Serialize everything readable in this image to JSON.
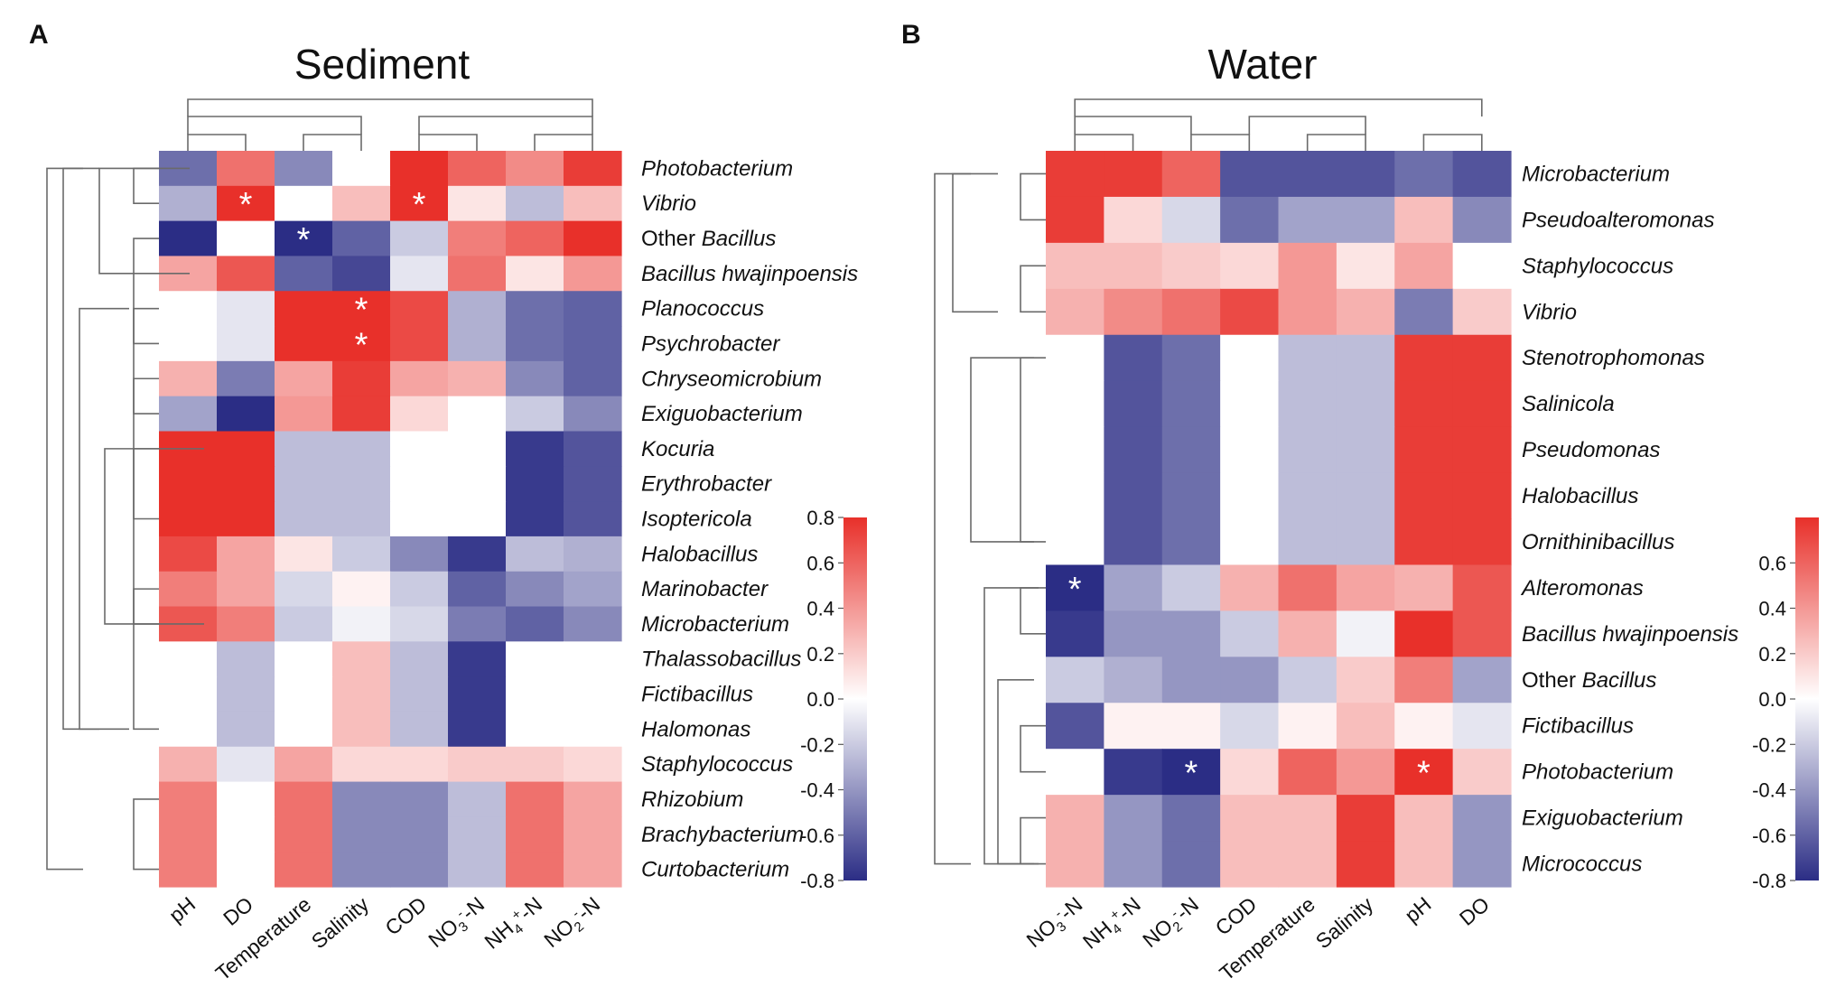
{
  "panels": [
    {
      "letter": "A",
      "title": "Sediment",
      "chart_data": {
        "type": "heatmap",
        "title": "Sediment",
        "columns": [
          "pH",
          "DO",
          "Temperature",
          "Salinity",
          "COD",
          "NO3--N",
          "NH4+-N",
          "NO2--N"
        ],
        "column_labels_rich": [
          [
            {
              "t": "pH"
            }
          ],
          [
            {
              "t": "DO"
            }
          ],
          [
            {
              "t": "Temperature"
            }
          ],
          [
            {
              "t": "Salinity"
            }
          ],
          [
            {
              "t": "COD"
            }
          ],
          [
            {
              "t": "NO"
            },
            {
              "t": "3",
              "s": "sub"
            },
            {
              "t": "-",
              "s": "sup"
            },
            {
              "t": "-N"
            }
          ],
          [
            {
              "t": "NH"
            },
            {
              "t": "4",
              "s": "sub"
            },
            {
              "t": "+",
              "s": "sup"
            },
            {
              "t": "-N"
            }
          ],
          [
            {
              "t": "NO"
            },
            {
              "t": "2",
              "s": "sub"
            },
            {
              "t": "-",
              "s": "sup"
            },
            {
              "t": "-N"
            }
          ]
        ],
        "rows": [
          [
            {
              "t": "Photobacterium",
              "i": true
            }
          ],
          [
            {
              "t": "Vibrio",
              "i": true
            }
          ],
          [
            {
              "t": "Other ",
              "i": false
            },
            {
              "t": "Bacillus",
              "i": true
            }
          ],
          [
            {
              "t": "Bacillus hwajinpoensis",
              "i": true
            }
          ],
          [
            {
              "t": "Planococcus",
              "i": true
            }
          ],
          [
            {
              "t": "Psychrobacter",
              "i": true
            }
          ],
          [
            {
              "t": "Chryseomicrobium",
              "i": true
            }
          ],
          [
            {
              "t": "Exiguobacterium",
              "i": true
            }
          ],
          [
            {
              "t": "Kocuria",
              "i": true
            }
          ],
          [
            {
              "t": "Erythrobacter",
              "i": true
            }
          ],
          [
            {
              "t": "Isoptericola",
              "i": true
            }
          ],
          [
            {
              "t": "Halobacillus",
              "i": true
            }
          ],
          [
            {
              "t": "Marinobacter",
              "i": true
            }
          ],
          [
            {
              "t": "Microbacterium",
              "i": true
            }
          ],
          [
            {
              "t": "Thalassobacillus",
              "i": true
            }
          ],
          [
            {
              "t": "Fictibacillus",
              "i": true
            }
          ],
          [
            {
              "t": "Halomonas",
              "i": true
            }
          ],
          [
            {
              "t": "Staphylococcus",
              "i": true
            }
          ],
          [
            {
              "t": "Rhizobium",
              "i": true
            }
          ],
          [
            {
              "t": "Brachybacterium",
              "i": true
            }
          ],
          [
            {
              "t": "Curtobacterium",
              "i": true
            }
          ]
        ],
        "values": [
          [
            -0.55,
            0.55,
            -0.45,
            0.0,
            0.8,
            0.6,
            0.45,
            0.75
          ],
          [
            -0.3,
            0.85,
            0.0,
            0.25,
            0.85,
            0.1,
            -0.25,
            0.25
          ],
          [
            -0.85,
            0.0,
            -0.85,
            -0.6,
            -0.2,
            0.5,
            0.6,
            0.8
          ],
          [
            0.35,
            0.65,
            -0.6,
            -0.7,
            -0.1,
            0.55,
            0.1,
            0.4
          ],
          [
            0.0,
            -0.1,
            0.8,
            0.8,
            0.7,
            -0.3,
            -0.55,
            -0.6
          ],
          [
            0.0,
            -0.1,
            0.8,
            0.8,
            0.7,
            -0.3,
            -0.55,
            -0.6
          ],
          [
            0.3,
            -0.5,
            0.35,
            0.75,
            0.35,
            0.3,
            -0.45,
            -0.6
          ],
          [
            -0.35,
            -0.85,
            0.4,
            0.75,
            0.15,
            0.0,
            -0.2,
            -0.45
          ],
          [
            0.8,
            0.8,
            -0.25,
            -0.25,
            0.0,
            0.0,
            -0.75,
            -0.65
          ],
          [
            0.8,
            0.8,
            -0.25,
            -0.25,
            0.0,
            0.0,
            -0.75,
            -0.65
          ],
          [
            0.8,
            0.8,
            -0.25,
            -0.25,
            0.0,
            0.0,
            -0.75,
            -0.65
          ],
          [
            0.7,
            0.35,
            0.1,
            -0.2,
            -0.45,
            -0.75,
            -0.25,
            -0.3
          ],
          [
            0.5,
            0.35,
            -0.15,
            0.05,
            -0.2,
            -0.6,
            -0.45,
            -0.35
          ],
          [
            0.65,
            0.5,
            -0.2,
            -0.05,
            -0.15,
            -0.5,
            -0.6,
            -0.45
          ],
          [
            0.0,
            -0.25,
            0.0,
            0.25,
            -0.25,
            -0.75,
            0.0,
            0.0
          ],
          [
            0.0,
            -0.25,
            0.0,
            0.25,
            -0.25,
            -0.75,
            0.0,
            0.0
          ],
          [
            0.0,
            -0.25,
            0.0,
            0.25,
            -0.25,
            -0.75,
            0.0,
            0.0
          ],
          [
            0.3,
            -0.1,
            0.35,
            0.15,
            0.15,
            0.2,
            0.2,
            0.15
          ],
          [
            0.5,
            0.0,
            0.55,
            -0.45,
            -0.45,
            -0.25,
            0.55,
            0.35
          ],
          [
            0.5,
            0.0,
            0.55,
            -0.45,
            -0.45,
            -0.25,
            0.55,
            0.35
          ],
          [
            0.5,
            0.0,
            0.55,
            -0.45,
            -0.45,
            -0.25,
            0.55,
            0.35
          ]
        ],
        "significant": [
          [
            1,
            1
          ],
          [
            1,
            4
          ],
          [
            2,
            2
          ],
          [
            4,
            3
          ],
          [
            5,
            3
          ]
        ],
        "significance_marker": "*",
        "colorbar": {
          "range": [
            -0.8,
            0.8
          ],
          "ticks": [
            "0.8",
            "0.6",
            "0.4",
            "0.2",
            "0.0",
            "-0.2",
            "-0.4",
            "-0.6",
            "-0.8"
          ]
        },
        "colors": {
          "low": "#2b2d85",
          "mid": "#ffffff",
          "high": "#e8302a"
        }
      }
    },
    {
      "letter": "B",
      "title": "Water",
      "chart_data": {
        "type": "heatmap",
        "title": "Water",
        "columns": [
          "NO3--N",
          "NH4+-N",
          "NO2--N",
          "COD",
          "Temperature",
          "Salinity",
          "pH",
          "DO"
        ],
        "column_labels_rich": [
          [
            {
              "t": "NO"
            },
            {
              "t": "3",
              "s": "sub"
            },
            {
              "t": "-",
              "s": "sup"
            },
            {
              "t": "-N"
            }
          ],
          [
            {
              "t": "NH"
            },
            {
              "t": "4",
              "s": "sub"
            },
            {
              "t": "+",
              "s": "sup"
            },
            {
              "t": "-N"
            }
          ],
          [
            {
              "t": "NO"
            },
            {
              "t": "2",
              "s": "sub"
            },
            {
              "t": "-",
              "s": "sup"
            },
            {
              "t": "-N"
            }
          ],
          [
            {
              "t": "COD"
            }
          ],
          [
            {
              "t": "Temperature"
            }
          ],
          [
            {
              "t": "Salinity"
            }
          ],
          [
            {
              "t": "pH"
            }
          ],
          [
            {
              "t": "DO"
            }
          ]
        ],
        "rows": [
          [
            {
              "t": "Microbacterium",
              "i": true
            }
          ],
          [
            {
              "t": "Pseudoalteromonas",
              "i": true
            }
          ],
          [
            {
              "t": "Staphylococcus",
              "i": true
            }
          ],
          [
            {
              "t": "Vibrio",
              "i": true
            }
          ],
          [
            {
              "t": "Stenotrophomonas",
              "i": true
            }
          ],
          [
            {
              "t": "Salinicola",
              "i": true
            }
          ],
          [
            {
              "t": "Pseudomonas",
              "i": true
            }
          ],
          [
            {
              "t": "Halobacillus",
              "i": true
            }
          ],
          [
            {
              "t": "Ornithinibacillus",
              "i": true
            }
          ],
          [
            {
              "t": "Alteromonas",
              "i": true
            }
          ],
          [
            {
              "t": "Bacillus hwajinpoensis",
              "i": true
            }
          ],
          [
            {
              "t": "Other ",
              "i": false
            },
            {
              "t": "Bacillus",
              "i": true
            }
          ],
          [
            {
              "t": "Fictibacillus",
              "i": true
            }
          ],
          [
            {
              "t": "Photobacterium",
              "i": true
            }
          ],
          [
            {
              "t": "Exiguobacterium",
              "i": true
            }
          ],
          [
            {
              "t": "Micrococcus",
              "i": true
            }
          ]
        ],
        "values": [
          [
            0.75,
            0.75,
            0.6,
            -0.65,
            -0.65,
            -0.65,
            -0.55,
            -0.65
          ],
          [
            0.75,
            0.15,
            -0.15,
            -0.55,
            -0.35,
            -0.35,
            0.25,
            -0.45
          ],
          [
            0.25,
            0.25,
            0.2,
            0.15,
            0.4,
            0.1,
            0.35,
            0.0
          ],
          [
            0.3,
            0.45,
            0.55,
            0.7,
            0.4,
            0.3,
            -0.5,
            0.2
          ],
          [
            0.0,
            -0.65,
            -0.55,
            0.0,
            -0.25,
            -0.25,
            0.75,
            0.75
          ],
          [
            0.0,
            -0.65,
            -0.55,
            0.0,
            -0.25,
            -0.25,
            0.75,
            0.75
          ],
          [
            0.0,
            -0.65,
            -0.55,
            0.0,
            -0.25,
            -0.25,
            0.75,
            0.75
          ],
          [
            0.0,
            -0.65,
            -0.55,
            0.0,
            -0.25,
            -0.25,
            0.75,
            0.75
          ],
          [
            0.0,
            -0.65,
            -0.55,
            0.0,
            -0.25,
            -0.25,
            0.75,
            0.75
          ],
          [
            -0.85,
            -0.35,
            -0.2,
            0.3,
            0.55,
            0.35,
            0.3,
            0.65
          ],
          [
            -0.75,
            -0.4,
            -0.4,
            -0.2,
            0.3,
            -0.05,
            0.8,
            0.65
          ],
          [
            -0.2,
            -0.3,
            -0.4,
            -0.4,
            -0.2,
            0.2,
            0.5,
            -0.35
          ],
          [
            -0.65,
            0.05,
            0.05,
            -0.15,
            0.05,
            0.25,
            0.05,
            -0.1
          ],
          [
            0.0,
            -0.75,
            -0.8,
            0.15,
            0.6,
            0.4,
            0.85,
            0.2
          ],
          [
            0.3,
            -0.4,
            -0.55,
            0.25,
            0.25,
            0.75,
            0.25,
            -0.4
          ],
          [
            0.3,
            -0.4,
            -0.55,
            0.25,
            0.25,
            0.75,
            0.25,
            -0.4
          ]
        ],
        "significant": [
          [
            9,
            0
          ],
          [
            13,
            2
          ],
          [
            13,
            6
          ]
        ],
        "significance_marker": "*",
        "colorbar": {
          "range": [
            -0.8,
            0.8
          ],
          "ticks": [
            "0.6",
            "0.4",
            "0.2",
            "0.0",
            "-0.2",
            "-0.4",
            "-0.6",
            "-0.8"
          ]
        },
        "colors": {
          "low": "#2b2d85",
          "mid": "#ffffff",
          "high": "#e8302a"
        }
      }
    }
  ]
}
